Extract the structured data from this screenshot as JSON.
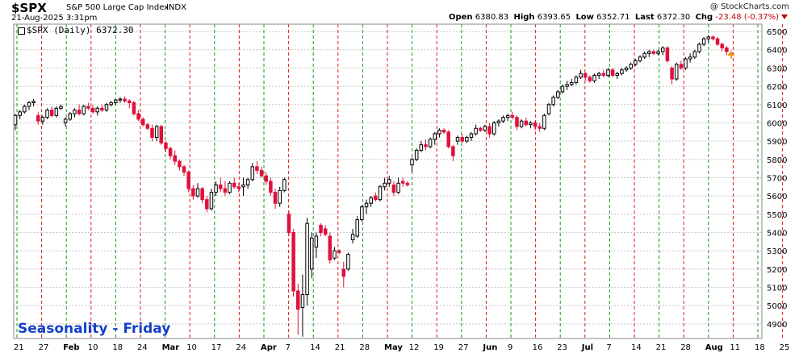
{
  "header": {
    "ticker": "$SPX",
    "description": "S&P 500 Large Cap Index",
    "exchange": "INDX",
    "brand": "@ StockCharts.com",
    "timestamp": "21-Aug-2025 3:31pm",
    "open_label": "Open",
    "open": "6380.83",
    "high_label": "High",
    "high": "6393.65",
    "low_label": "Low",
    "low": "6352.71",
    "last_label": "Last",
    "last": "6372.30",
    "chg_label": "Chg",
    "chg": "-23.48 (-0.37%)"
  },
  "legend": "$SPX (Daily) 6372.30",
  "overlay_text": "Seasonality - Friday",
  "colors": {
    "up": "#000000",
    "down": "#e0103c",
    "green_line": "#1a9a1a",
    "red_line": "#e01a1a",
    "grid": "#c8c8c8",
    "title_blue": "#1440c8"
  },
  "chart_data": {
    "type": "candlestick",
    "yaxis": {
      "ticks": [
        4900,
        5000,
        5100,
        5200,
        5300,
        5400,
        5500,
        5600,
        5700,
        5800,
        5900,
        6000,
        6100,
        6200,
        6300,
        6400,
        6500
      ],
      "ylim": [
        4820,
        6540
      ]
    },
    "x_tick_labels": [
      "21",
      "27",
      "Feb",
      "10",
      "18",
      "24",
      "Mar",
      "10",
      "17",
      "24",
      "Apr",
      "7",
      "14",
      "21",
      "28",
      "May",
      "12",
      "19",
      "27",
      "Jun",
      "9",
      "16",
      "23",
      "Jul",
      "7",
      "14",
      "21",
      "28",
      "Aug",
      "11",
      "18",
      "25"
    ],
    "bold_tick_labels": [
      "Feb",
      "Mar",
      "Apr",
      "May",
      "Jun",
      "Jul",
      "Aug"
    ],
    "series": [
      {
        "o": 5990,
        "h": 6050,
        "l": 5960,
        "c": 6040
      },
      {
        "o": 6040,
        "h": 6070,
        "l": 6020,
        "c": 6060
      },
      {
        "o": 6060,
        "h": 6100,
        "l": 6050,
        "c": 6090
      },
      {
        "o": 6090,
        "h": 6120,
        "l": 6070,
        "c": 6110
      },
      {
        "o": 6110,
        "h": 6130,
        "l": 6090,
        "c": 6118
      },
      {
        "o": 6040,
        "h": 6060,
        "l": 5990,
        "c": 6010
      },
      {
        "o": 6010,
        "h": 6040,
        "l": 5990,
        "c": 6030
      },
      {
        "o": 6030,
        "h": 6080,
        "l": 6020,
        "c": 6070
      },
      {
        "o": 6070,
        "h": 6090,
        "l": 6030,
        "c": 6040
      },
      {
        "o": 6040,
        "h": 6090,
        "l": 6030,
        "c": 6080
      },
      {
        "o": 6080,
        "h": 6100,
        "l": 6070,
        "c": 6090
      },
      {
        "o": 6000,
        "h": 6030,
        "l": 5980,
        "c": 6020
      },
      {
        "o": 6020,
        "h": 6060,
        "l": 6010,
        "c": 6050
      },
      {
        "o": 6050,
        "h": 6080,
        "l": 6030,
        "c": 6070
      },
      {
        "o": 6070,
        "h": 6100,
        "l": 6040,
        "c": 6050
      },
      {
        "o": 6050,
        "h": 6100,
        "l": 6040,
        "c": 6090
      },
      {
        "o": 6090,
        "h": 6110,
        "l": 6070,
        "c": 6080
      },
      {
        "o": 6080,
        "h": 6100,
        "l": 6050,
        "c": 6060
      },
      {
        "o": 6060,
        "h": 6090,
        "l": 6040,
        "c": 6080
      },
      {
        "o": 6080,
        "h": 6100,
        "l": 6060,
        "c": 6070
      },
      {
        "o": 6070,
        "h": 6110,
        "l": 6060,
        "c": 6100
      },
      {
        "o": 6100,
        "h": 6120,
        "l": 6090,
        "c": 6110
      },
      {
        "o": 6110,
        "h": 6130,
        "l": 6100,
        "c": 6125
      },
      {
        "o": 6125,
        "h": 6140,
        "l": 6110,
        "c": 6130
      },
      {
        "o": 6130,
        "h": 6145,
        "l": 6110,
        "c": 6120
      },
      {
        "o": 6120,
        "h": 6130,
        "l": 6080,
        "c": 6110
      },
      {
        "o": 6110,
        "h": 6120,
        "l": 6040,
        "c": 6050
      },
      {
        "o": 6050,
        "h": 6070,
        "l": 6010,
        "c": 6020
      },
      {
        "o": 6020,
        "h": 6030,
        "l": 5980,
        "c": 5990
      },
      {
        "o": 5990,
        "h": 6000,
        "l": 5960,
        "c": 5970
      },
      {
        "o": 5970,
        "h": 5990,
        "l": 5900,
        "c": 5920
      },
      {
        "o": 5920,
        "h": 5990,
        "l": 5900,
        "c": 5980
      },
      {
        "o": 5980,
        "h": 5990,
        "l": 5880,
        "c": 5890
      },
      {
        "o": 5890,
        "h": 5900,
        "l": 5840,
        "c": 5860
      },
      {
        "o": 5860,
        "h": 5870,
        "l": 5800,
        "c": 5820
      },
      {
        "o": 5820,
        "h": 5850,
        "l": 5770,
        "c": 5790
      },
      {
        "o": 5790,
        "h": 5800,
        "l": 5740,
        "c": 5760
      },
      {
        "o": 5760,
        "h": 5770,
        "l": 5710,
        "c": 5730
      },
      {
        "o": 5730,
        "h": 5740,
        "l": 5620,
        "c": 5640
      },
      {
        "o": 5640,
        "h": 5660,
        "l": 5580,
        "c": 5600
      },
      {
        "o": 5600,
        "h": 5670,
        "l": 5590,
        "c": 5640
      },
      {
        "o": 5640,
        "h": 5650,
        "l": 5560,
        "c": 5580
      },
      {
        "o": 5580,
        "h": 5600,
        "l": 5510,
        "c": 5530
      },
      {
        "o": 5530,
        "h": 5640,
        "l": 5520,
        "c": 5620
      },
      {
        "o": 5620,
        "h": 5680,
        "l": 5600,
        "c": 5660
      },
      {
        "o": 5660,
        "h": 5700,
        "l": 5620,
        "c": 5640
      },
      {
        "o": 5640,
        "h": 5680,
        "l": 5600,
        "c": 5620
      },
      {
        "o": 5620,
        "h": 5680,
        "l": 5610,
        "c": 5670
      },
      {
        "o": 5670,
        "h": 5700,
        "l": 5640,
        "c": 5650
      },
      {
        "o": 5650,
        "h": 5670,
        "l": 5620,
        "c": 5640
      },
      {
        "o": 5650,
        "h": 5700,
        "l": 5600,
        "c": 5660
      },
      {
        "o": 5660,
        "h": 5700,
        "l": 5640,
        "c": 5690
      },
      {
        "o": 5690,
        "h": 5780,
        "l": 5680,
        "c": 5760
      },
      {
        "o": 5760,
        "h": 5790,
        "l": 5720,
        "c": 5740
      },
      {
        "o": 5740,
        "h": 5760,
        "l": 5700,
        "c": 5710
      },
      {
        "o": 5710,
        "h": 5730,
        "l": 5660,
        "c": 5680
      },
      {
        "o": 5680,
        "h": 5700,
        "l": 5600,
        "c": 5620
      },
      {
        "o": 5620,
        "h": 5640,
        "l": 5530,
        "c": 5560
      },
      {
        "o": 5560,
        "h": 5650,
        "l": 5540,
        "c": 5630
      },
      {
        "o": 5630,
        "h": 5700,
        "l": 5620,
        "c": 5690
      },
      {
        "o": 5500,
        "h": 5520,
        "l": 5380,
        "c": 5400
      },
      {
        "o": 5400,
        "h": 5420,
        "l": 5050,
        "c": 5080
      },
      {
        "o": 5080,
        "h": 5120,
        "l": 4840,
        "c": 4980
      },
      {
        "o": 4990,
        "h": 5170,
        "l": 4830,
        "c": 5060
      },
      {
        "o": 5060,
        "h": 5480,
        "l": 5000,
        "c": 5450
      },
      {
        "o": 5200,
        "h": 5400,
        "l": 5150,
        "c": 5370
      },
      {
        "o": 5320,
        "h": 5400,
        "l": 5260,
        "c": 5380
      },
      {
        "o": 5440,
        "h": 5450,
        "l": 5380,
        "c": 5400
      },
      {
        "o": 5420,
        "h": 5440,
        "l": 5380,
        "c": 5390
      },
      {
        "o": 5380,
        "h": 5400,
        "l": 5230,
        "c": 5250
      },
      {
        "o": 5260,
        "h": 5320,
        "l": 5250,
        "c": 5300
      },
      {
        "o": 5300,
        "h": 5310,
        "l": 5280,
        "c": 5290
      },
      {
        "o": 5200,
        "h": 5240,
        "l": 5100,
        "c": 5160
      },
      {
        "o": 5200,
        "h": 5290,
        "l": 5190,
        "c": 5280
      },
      {
        "o": 5360,
        "h": 5420,
        "l": 5340,
        "c": 5390
      },
      {
        "o": 5380,
        "h": 5490,
        "l": 5370,
        "c": 5470
      },
      {
        "o": 5470,
        "h": 5550,
        "l": 5460,
        "c": 5540
      },
      {
        "o": 5540,
        "h": 5580,
        "l": 5500,
        "c": 5560
      },
      {
        "o": 5560,
        "h": 5600,
        "l": 5540,
        "c": 5590
      },
      {
        "o": 5600,
        "h": 5620,
        "l": 5570,
        "c": 5580
      },
      {
        "o": 5580,
        "h": 5660,
        "l": 5570,
        "c": 5650
      },
      {
        "o": 5650,
        "h": 5700,
        "l": 5630,
        "c": 5670
      },
      {
        "o": 5670,
        "h": 5710,
        "l": 5650,
        "c": 5690
      },
      {
        "o": 5660,
        "h": 5680,
        "l": 5600,
        "c": 5620
      },
      {
        "o": 5620,
        "h": 5700,
        "l": 5610,
        "c": 5670
      },
      {
        "o": 5680,
        "h": 5700,
        "l": 5650,
        "c": 5670
      },
      {
        "o": 5670,
        "h": 5680,
        "l": 5650,
        "c": 5660
      },
      {
        "o": 5770,
        "h": 5810,
        "l": 5730,
        "c": 5800
      },
      {
        "o": 5800,
        "h": 5860,
        "l": 5790,
        "c": 5850
      },
      {
        "o": 5850,
        "h": 5900,
        "l": 5840,
        "c": 5880
      },
      {
        "o": 5880,
        "h": 5910,
        "l": 5850,
        "c": 5870
      },
      {
        "o": 5870,
        "h": 5920,
        "l": 5860,
        "c": 5910
      },
      {
        "o": 5910,
        "h": 5950,
        "l": 5880,
        "c": 5940
      },
      {
        "o": 5940,
        "h": 5970,
        "l": 5920,
        "c": 5960
      },
      {
        "o": 5960,
        "h": 5970,
        "l": 5940,
        "c": 5950
      },
      {
        "o": 5950,
        "h": 5960,
        "l": 5860,
        "c": 5870
      },
      {
        "o": 5870,
        "h": 5880,
        "l": 5790,
        "c": 5820
      },
      {
        "o": 5900,
        "h": 5930,
        "l": 5880,
        "c": 5920
      },
      {
        "o": 5920,
        "h": 5940,
        "l": 5890,
        "c": 5900
      },
      {
        "o": 5900,
        "h": 5930,
        "l": 5890,
        "c": 5920
      },
      {
        "o": 5920,
        "h": 5950,
        "l": 5900,
        "c": 5940
      },
      {
        "o": 5940,
        "h": 5990,
        "l": 5930,
        "c": 5970
      },
      {
        "o": 5970,
        "h": 5980,
        "l": 5950,
        "c": 5960
      },
      {
        "o": 5960,
        "h": 5990,
        "l": 5950,
        "c": 5980
      },
      {
        "o": 5980,
        "h": 6000,
        "l": 5920,
        "c": 5940
      },
      {
        "o": 5940,
        "h": 6010,
        "l": 5930,
        "c": 6000
      },
      {
        "o": 6000,
        "h": 6020,
        "l": 5980,
        "c": 6010
      },
      {
        "o": 6010,
        "h": 6040,
        "l": 6000,
        "c": 6030
      },
      {
        "o": 6030,
        "h": 6050,
        "l": 6010,
        "c": 6040
      },
      {
        "o": 6040,
        "h": 6060,
        "l": 6020,
        "c": 6030
      },
      {
        "o": 6030,
        "h": 6040,
        "l": 5960,
        "c": 5980
      },
      {
        "o": 5980,
        "h": 6020,
        "l": 5970,
        "c": 6010
      },
      {
        "o": 6010,
        "h": 6030,
        "l": 5980,
        "c": 5990
      },
      {
        "o": 5990,
        "h": 6010,
        "l": 5970,
        "c": 6000
      },
      {
        "o": 6000,
        "h": 6010,
        "l": 5960,
        "c": 5980
      },
      {
        "o": 5980,
        "h": 6000,
        "l": 5950,
        "c": 5970
      },
      {
        "o": 5970,
        "h": 6050,
        "l": 5960,
        "c": 6040
      },
      {
        "o": 6050,
        "h": 6110,
        "l": 6040,
        "c": 6100
      },
      {
        "o": 6100,
        "h": 6150,
        "l": 6090,
        "c": 6140
      },
      {
        "o": 6140,
        "h": 6180,
        "l": 6130,
        "c": 6170
      },
      {
        "o": 6170,
        "h": 6210,
        "l": 6160,
        "c": 6200
      },
      {
        "o": 6200,
        "h": 6230,
        "l": 6180,
        "c": 6210
      },
      {
        "o": 6210,
        "h": 6240,
        "l": 6200,
        "c": 6220
      },
      {
        "o": 6220,
        "h": 6260,
        "l": 6210,
        "c": 6250
      },
      {
        "o": 6250,
        "h": 6290,
        "l": 6240,
        "c": 6270
      },
      {
        "o": 6270,
        "h": 6280,
        "l": 6230,
        "c": 6250
      },
      {
        "o": 6250,
        "h": 6260,
        "l": 6220,
        "c": 6230
      },
      {
        "o": 6230,
        "h": 6270,
        "l": 6220,
        "c": 6260
      },
      {
        "o": 6260,
        "h": 6280,
        "l": 6240,
        "c": 6270
      },
      {
        "o": 6270,
        "h": 6290,
        "l": 6250,
        "c": 6260
      },
      {
        "o": 6260,
        "h": 6300,
        "l": 6250,
        "c": 6290
      },
      {
        "o": 6290,
        "h": 6300,
        "l": 6250,
        "c": 6260
      },
      {
        "o": 6260,
        "h": 6280,
        "l": 6240,
        "c": 6270
      },
      {
        "o": 6270,
        "h": 6300,
        "l": 6260,
        "c": 6290
      },
      {
        "o": 6290,
        "h": 6310,
        "l": 6280,
        "c": 6300
      },
      {
        "o": 6300,
        "h": 6330,
        "l": 6290,
        "c": 6320
      },
      {
        "o": 6320,
        "h": 6350,
        "l": 6310,
        "c": 6340
      },
      {
        "o": 6340,
        "h": 6370,
        "l": 6330,
        "c": 6360
      },
      {
        "o": 6360,
        "h": 6390,
        "l": 6350,
        "c": 6380
      },
      {
        "o": 6380,
        "h": 6400,
        "l": 6360,
        "c": 6390
      },
      {
        "o": 6390,
        "h": 6400,
        "l": 6370,
        "c": 6380
      },
      {
        "o": 6380,
        "h": 6400,
        "l": 6370,
        "c": 6390
      },
      {
        "o": 6390,
        "h": 6420,
        "l": 6370,
        "c": 6410
      },
      {
        "o": 6410,
        "h": 6420,
        "l": 6330,
        "c": 6340
      },
      {
        "o": 6300,
        "h": 6310,
        "l": 6210,
        "c": 6240
      },
      {
        "o": 6240,
        "h": 6330,
        "l": 6230,
        "c": 6320
      },
      {
        "o": 6320,
        "h": 6340,
        "l": 6290,
        "c": 6300
      },
      {
        "o": 6300,
        "h": 6360,
        "l": 6290,
        "c": 6350
      },
      {
        "o": 6350,
        "h": 6380,
        "l": 6330,
        "c": 6360
      },
      {
        "o": 6360,
        "h": 6400,
        "l": 6350,
        "c": 6390
      },
      {
        "o": 6390,
        "h": 6440,
        "l": 6380,
        "c": 6430
      },
      {
        "o": 6430,
        "h": 6470,
        "l": 6420,
        "c": 6460
      },
      {
        "o": 6460,
        "h": 6480,
        "l": 6440,
        "c": 6470
      },
      {
        "o": 6470,
        "h": 6480,
        "l": 6450,
        "c": 6460
      },
      {
        "o": 6460,
        "h": 6470,
        "l": 6420,
        "c": 6430
      },
      {
        "o": 6430,
        "h": 6440,
        "l": 6390,
        "c": 6410
      },
      {
        "o": 6410,
        "h": 6420,
        "l": 6370,
        "c": 6390
      },
      {
        "o": 6380,
        "h": 6393,
        "l": 6352,
        "c": 6372
      }
    ]
  }
}
